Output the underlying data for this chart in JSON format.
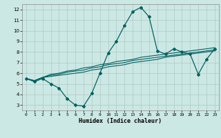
{
  "title": "",
  "xlabel": "Humidex (Indice chaleur)",
  "background_color": "#cce8e4",
  "grid_color": "#b0c8c4",
  "line_color": "#006060",
  "xlim": [
    -0.5,
    23.5
  ],
  "ylim": [
    2.5,
    12.5
  ],
  "xticks": [
    0,
    1,
    2,
    3,
    4,
    5,
    6,
    7,
    8,
    9,
    10,
    11,
    12,
    13,
    14,
    15,
    16,
    17,
    18,
    19,
    20,
    21,
    22,
    23
  ],
  "yticks": [
    3,
    4,
    5,
    6,
    7,
    8,
    9,
    10,
    11,
    12
  ],
  "line1": [
    5.5,
    5.2,
    5.5,
    5.0,
    4.6,
    3.6,
    3.0,
    2.9,
    4.1,
    6.0,
    7.9,
    9.0,
    10.5,
    11.8,
    12.2,
    11.3,
    8.1,
    7.8,
    8.3,
    8.0,
    7.8,
    5.9,
    7.3,
    8.3
  ],
  "line2": [
    5.5,
    5.3,
    5.6,
    5.7,
    5.8,
    5.9,
    6.0,
    6.1,
    6.3,
    6.4,
    6.6,
    6.7,
    6.8,
    7.0,
    7.1,
    7.2,
    7.3,
    7.5,
    7.6,
    7.7,
    7.8,
    7.9,
    8.0,
    8.1
  ],
  "line3": [
    5.5,
    5.3,
    5.6,
    5.8,
    5.9,
    6.1,
    6.2,
    6.3,
    6.5,
    6.6,
    6.8,
    6.9,
    7.0,
    7.2,
    7.3,
    7.4,
    7.5,
    7.6,
    7.7,
    7.8,
    7.9,
    8.0,
    8.1,
    8.2
  ],
  "line4": [
    5.5,
    5.3,
    5.6,
    5.9,
    6.0,
    6.2,
    6.3,
    6.5,
    6.6,
    6.8,
    6.9,
    7.1,
    7.2,
    7.3,
    7.5,
    7.6,
    7.7,
    7.8,
    7.9,
    8.0,
    8.1,
    8.2,
    8.3,
    8.4
  ]
}
